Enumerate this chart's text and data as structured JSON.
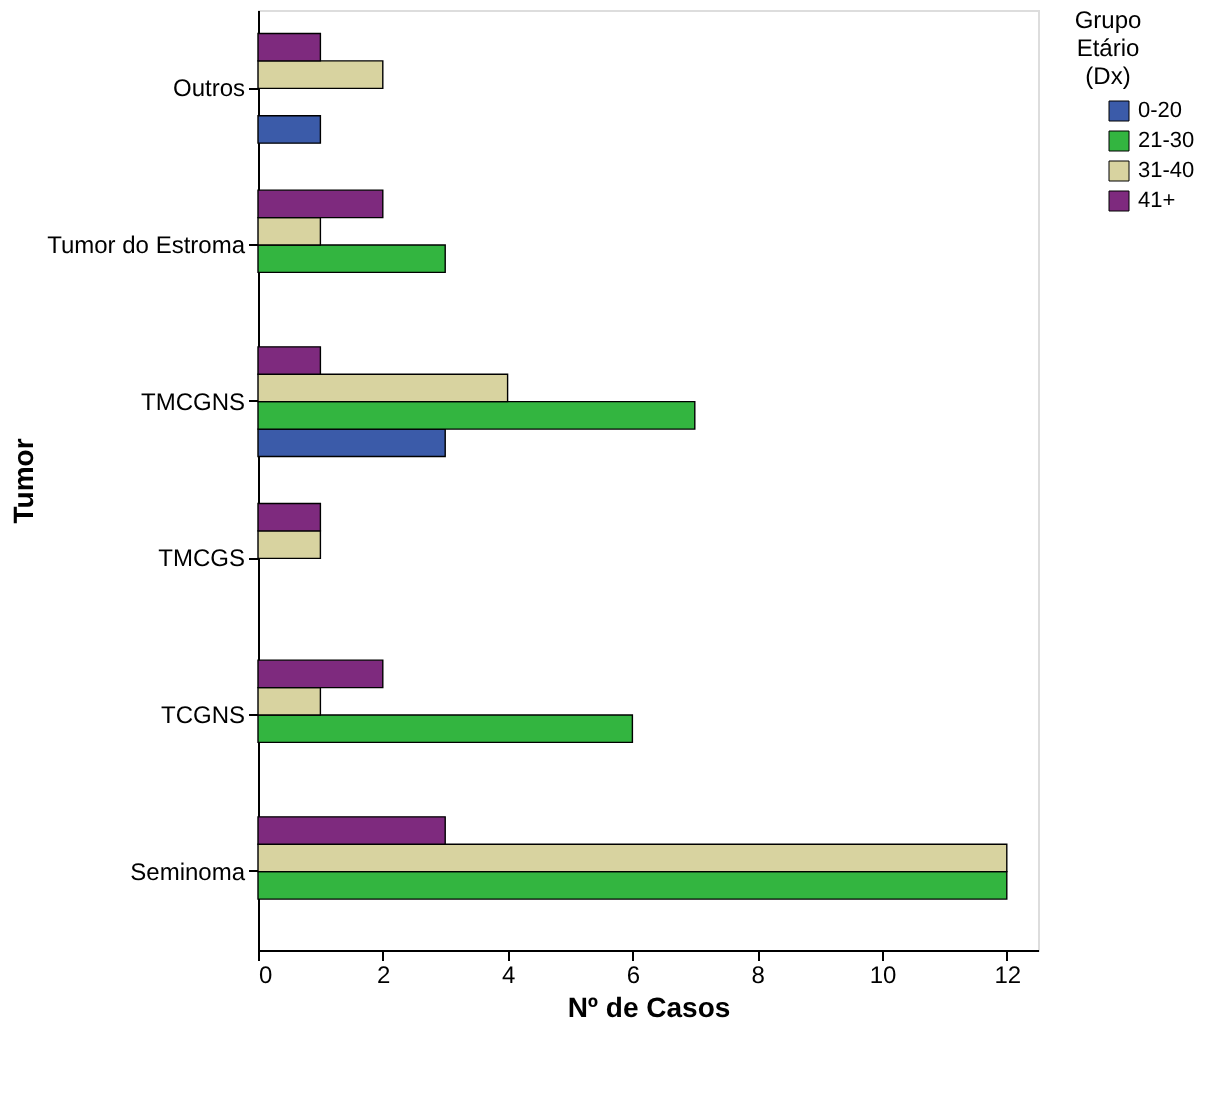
{
  "chart_data": {
    "type": "bar",
    "orientation": "horizontal",
    "xlabel": "Nº de Casos",
    "ylabel": "Tumor",
    "legend_title": "Grupo Etário (Dx)",
    "legend": "top right",
    "grid": false,
    "categories": [
      "Outros",
      "Tumor do Estroma",
      "TMCGNS",
      "TMCGS",
      "TCGNS",
      "Seminoma"
    ],
    "series": [
      {
        "name": "0-20",
        "color": "#3b5ba9",
        "values": [
          1,
          null,
          3,
          null,
          null,
          null
        ]
      },
      {
        "name": "21-30",
        "color": "#33b540",
        "values": [
          null,
          3,
          7,
          null,
          6,
          12
        ]
      },
      {
        "name": "31-40",
        "color": "#d8d3a0",
        "values": [
          2,
          1,
          4,
          1,
          1,
          12
        ]
      },
      {
        "name": "41+",
        "color": "#7e2a7e",
        "values": [
          1,
          2,
          1,
          1,
          2,
          3
        ]
      }
    ],
    "xlim": [
      0,
      12.5
    ],
    "xticks": [
      0,
      2,
      4,
      6,
      8,
      10,
      12
    ]
  }
}
